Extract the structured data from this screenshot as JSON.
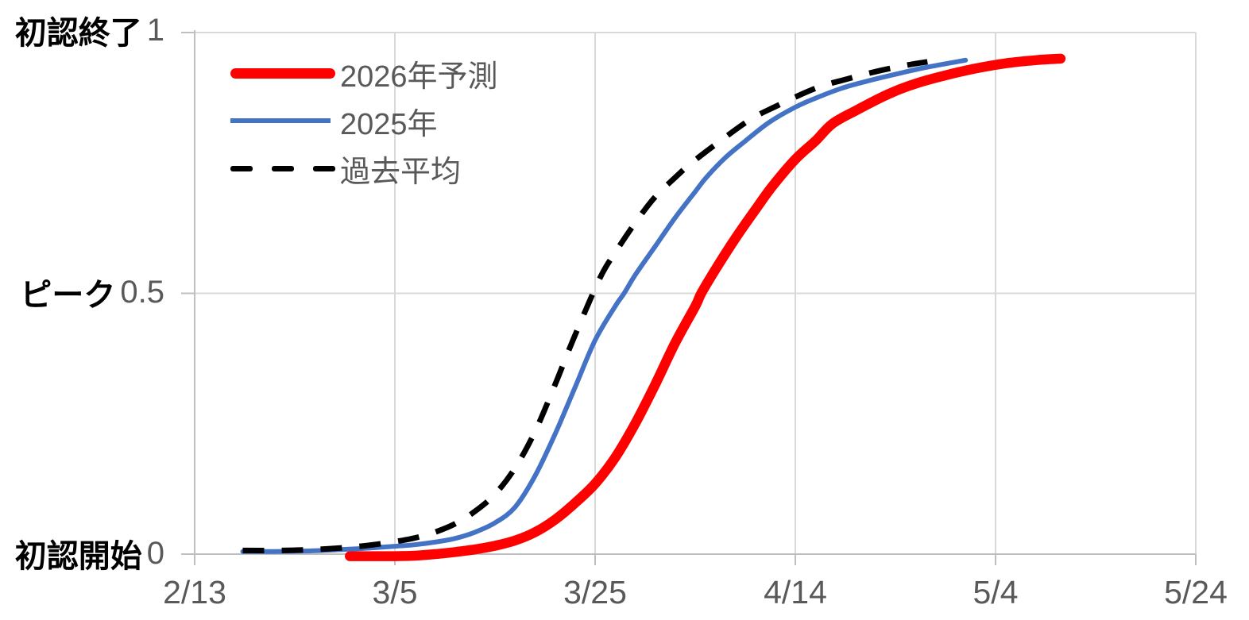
{
  "figure": {
    "background": "#FFFFFF",
    "description_labels": {
      "y_top": "初認終了",
      "y_mid": "ピーク",
      "y_bottom": "初認開始"
    }
  },
  "colors": {
    "grid": "#D9D9D9",
    "axis": "#BFBFBF",
    "tick_text": "#595959",
    "jp_label_text": "#000000",
    "series_red": "#FF0000",
    "series_blue": "#4472C4",
    "series_black": "#000000"
  },
  "chart_data": {
    "type": "line",
    "title": "",
    "grid": "on",
    "legend_position": "top-left-inside",
    "x_axis": {
      "unit": "date (month/day)",
      "days_range": [
        0,
        100
      ],
      "ticks": [
        {
          "label": "2/13",
          "day": 0
        },
        {
          "label": "3/5",
          "day": 20
        },
        {
          "label": "3/25",
          "day": 40
        },
        {
          "label": "4/14",
          "day": 60
        },
        {
          "label": "5/4",
          "day": 80
        },
        {
          "label": "5/24",
          "day": 100
        }
      ]
    },
    "y_axis": {
      "range": [
        0,
        1
      ],
      "ticks": [
        {
          "jp_label": "初認終了",
          "num_label": "1",
          "value": 1
        },
        {
          "jp_label": "ピーク",
          "num_label": "0.5",
          "value": 0.5
        },
        {
          "jp_label": "初認開始",
          "num_label": "0",
          "value": 0
        }
      ]
    },
    "series": [
      {
        "key": "2026-forecast",
        "name": "2026年予測",
        "color": "#FF0000",
        "line_style": "solid",
        "stroke_width": 12.5,
        "points": [
          [
            15.5,
            -0.004
          ],
          [
            18,
            -0.004
          ],
          [
            20,
            -0.004
          ],
          [
            22,
            -0.003
          ],
          [
            24,
            0.0
          ],
          [
            26,
            0.004
          ],
          [
            28,
            0.009
          ],
          [
            30,
            0.016
          ],
          [
            32,
            0.026
          ],
          [
            34,
            0.042
          ],
          [
            36,
            0.066
          ],
          [
            38,
            0.098
          ],
          [
            40,
            0.135
          ],
          [
            42,
            0.185
          ],
          [
            44,
            0.25
          ],
          [
            46,
            0.325
          ],
          [
            48,
            0.405
          ],
          [
            50,
            0.475
          ],
          [
            50.6,
            0.5
          ],
          [
            52,
            0.545
          ],
          [
            54,
            0.605
          ],
          [
            56,
            0.66
          ],
          [
            57.7,
            0.705
          ],
          [
            60,
            0.757
          ],
          [
            62,
            0.792
          ],
          [
            63.7,
            0.825
          ],
          [
            66,
            0.85
          ],
          [
            69.3,
            0.882
          ],
          [
            72,
            0.902
          ],
          [
            75,
            0.918
          ],
          [
            78,
            0.931
          ],
          [
            81,
            0.941
          ],
          [
            84,
            0.947
          ],
          [
            86.5,
            0.95
          ]
        ]
      },
      {
        "key": "2025",
        "name": "2025年",
        "color": "#4472C4",
        "line_style": "solid",
        "stroke_width": 6,
        "points": [
          [
            4.8,
            0.005
          ],
          [
            8,
            0.005
          ],
          [
            11,
            0.006
          ],
          [
            14,
            0.008
          ],
          [
            17,
            0.011
          ],
          [
            20,
            0.015
          ],
          [
            22,
            0.018
          ],
          [
            24,
            0.023
          ],
          [
            26,
            0.03
          ],
          [
            28,
            0.042
          ],
          [
            30,
            0.06
          ],
          [
            32,
            0.09
          ],
          [
            34,
            0.15
          ],
          [
            36,
            0.23
          ],
          [
            38,
            0.32
          ],
          [
            40,
            0.41
          ],
          [
            42,
            0.475
          ],
          [
            42.9,
            0.5
          ],
          [
            44,
            0.535
          ],
          [
            46,
            0.59
          ],
          [
            48,
            0.645
          ],
          [
            50,
            0.695
          ],
          [
            51.1,
            0.722
          ],
          [
            53,
            0.76
          ],
          [
            55,
            0.792
          ],
          [
            57.4,
            0.828
          ],
          [
            60,
            0.857
          ],
          [
            62,
            0.874
          ],
          [
            64.6,
            0.893
          ],
          [
            67,
            0.906
          ],
          [
            70,
            0.92
          ],
          [
            73,
            0.933
          ],
          [
            77,
            0.947
          ]
        ]
      },
      {
        "key": "past-average",
        "name": "過去平均",
        "color": "#000000",
        "line_style": "dashed",
        "stroke_width": 7,
        "points": [
          [
            4.8,
            0.007
          ],
          [
            8,
            0.007
          ],
          [
            11,
            0.008
          ],
          [
            14,
            0.011
          ],
          [
            17,
            0.016
          ],
          [
            20,
            0.024
          ],
          [
            22,
            0.031
          ],
          [
            24,
            0.042
          ],
          [
            26,
            0.058
          ],
          [
            28,
            0.082
          ],
          [
            30,
            0.115
          ],
          [
            32,
            0.165
          ],
          [
            34,
            0.235
          ],
          [
            36,
            0.325
          ],
          [
            38,
            0.42
          ],
          [
            40.5,
            0.53
          ],
          [
            42,
            0.578
          ],
          [
            44,
            0.635
          ],
          [
            46,
            0.685
          ],
          [
            48,
            0.722
          ],
          [
            49.5,
            0.748
          ],
          [
            52,
            0.785
          ],
          [
            55.4,
            0.832
          ],
          [
            58,
            0.858
          ],
          [
            62,
            0.893
          ],
          [
            65,
            0.91
          ],
          [
            68,
            0.925
          ],
          [
            71,
            0.937
          ],
          [
            73.2,
            0.944
          ]
        ]
      }
    ]
  }
}
